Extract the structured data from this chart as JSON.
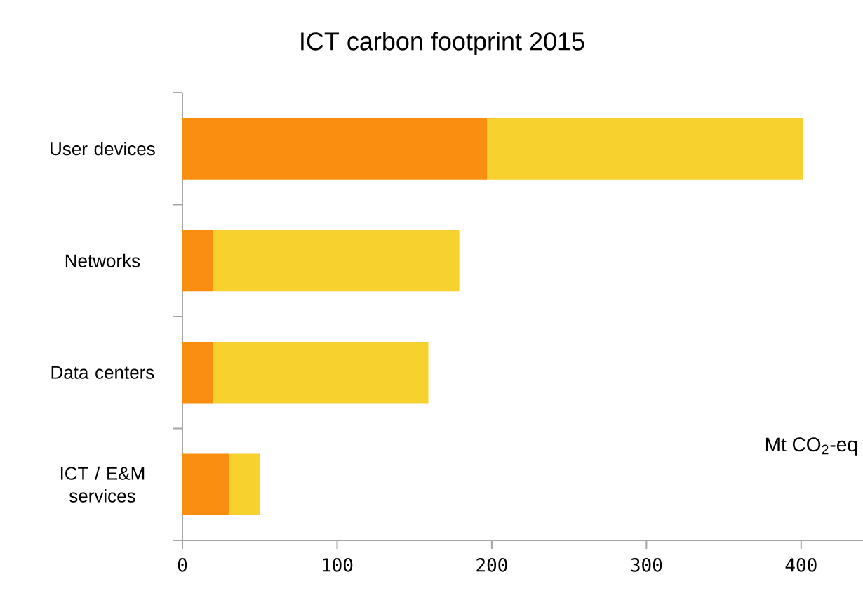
{
  "chart_data": {
    "type": "bar",
    "orientation": "horizontal",
    "stacked": true,
    "title": "ICT carbon footprint 2015",
    "categories": [
      "User devices",
      "Networks",
      "Data centers",
      "ICT / E&M services"
    ],
    "series": [
      {
        "color": "#f98e10",
        "values": [
          197,
          20,
          20,
          30
        ]
      },
      {
        "color": "#f7d12e",
        "values": [
          204,
          159,
          139,
          20
        ]
      }
    ],
    "xlim": [
      0,
      440
    ],
    "xticks": [
      0,
      100,
      200,
      300,
      400
    ],
    "annotations": [
      "Mt CO$_{2}$-eq"
    ]
  }
}
